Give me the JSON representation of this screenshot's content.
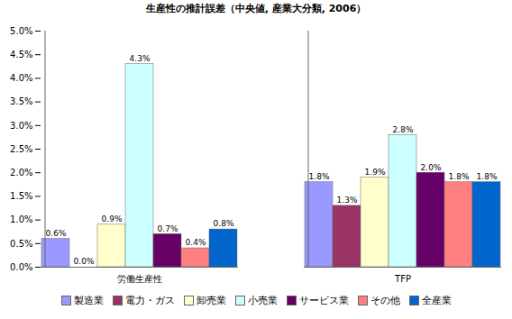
{
  "chart_data": {
    "type": "bar",
    "title": "生産性の推計誤差（中央値, 産業大分類, 2006）",
    "categories": [
      "労働生産性",
      "TFP"
    ],
    "series": [
      {
        "name": "製造業",
        "color": "#9999FF",
        "values": [
          0.6,
          1.8
        ],
        "value_labels": [
          "0.6%",
          "1.8%"
        ]
      },
      {
        "name": "電力・ガス",
        "color": "#993366",
        "values": [
          0.0,
          1.3
        ],
        "value_labels": [
          "0.0%",
          "1.3%"
        ]
      },
      {
        "name": "卸売業",
        "color": "#FFFFCC",
        "values": [
          0.9,
          1.9
        ],
        "value_labels": [
          "0.9%",
          "1.9%"
        ]
      },
      {
        "name": "小売業",
        "color": "#CCFFFF",
        "values": [
          4.3,
          2.8
        ],
        "value_labels": [
          "4.3%",
          "2.8%"
        ]
      },
      {
        "name": "サービス業",
        "color": "#660066",
        "values": [
          0.7,
          2.0
        ],
        "value_labels": [
          "0.7%",
          "2.0%"
        ]
      },
      {
        "name": "その他",
        "color": "#FF8080",
        "values": [
          0.4,
          1.8
        ],
        "value_labels": [
          "0.4%",
          "1.8%"
        ]
      },
      {
        "name": "全産業",
        "color": "#0066CC",
        "values": [
          0.8,
          1.8
        ],
        "value_labels": [
          "0.8%",
          "1.8%"
        ]
      }
    ],
    "ylim": [
      0,
      5
    ],
    "yticks": [
      {
        "value": 0,
        "label": "0.0%"
      },
      {
        "value": 0.5,
        "label": "0.5%"
      },
      {
        "value": 1,
        "label": "1.0%"
      },
      {
        "value": 1.5,
        "label": "1.5%"
      },
      {
        "value": 2,
        "label": "2.0%"
      },
      {
        "value": 2.5,
        "label": "2.5%"
      },
      {
        "value": 3,
        "label": "3.0%"
      },
      {
        "value": 3.5,
        "label": "3.5%"
      },
      {
        "value": 4,
        "label": "4.0%"
      },
      {
        "value": 4.5,
        "label": "4.5%"
      },
      {
        "value": 5,
        "label": "5.0%"
      }
    ],
    "grid": false,
    "legend": "bottom",
    "data_labels": true
  }
}
